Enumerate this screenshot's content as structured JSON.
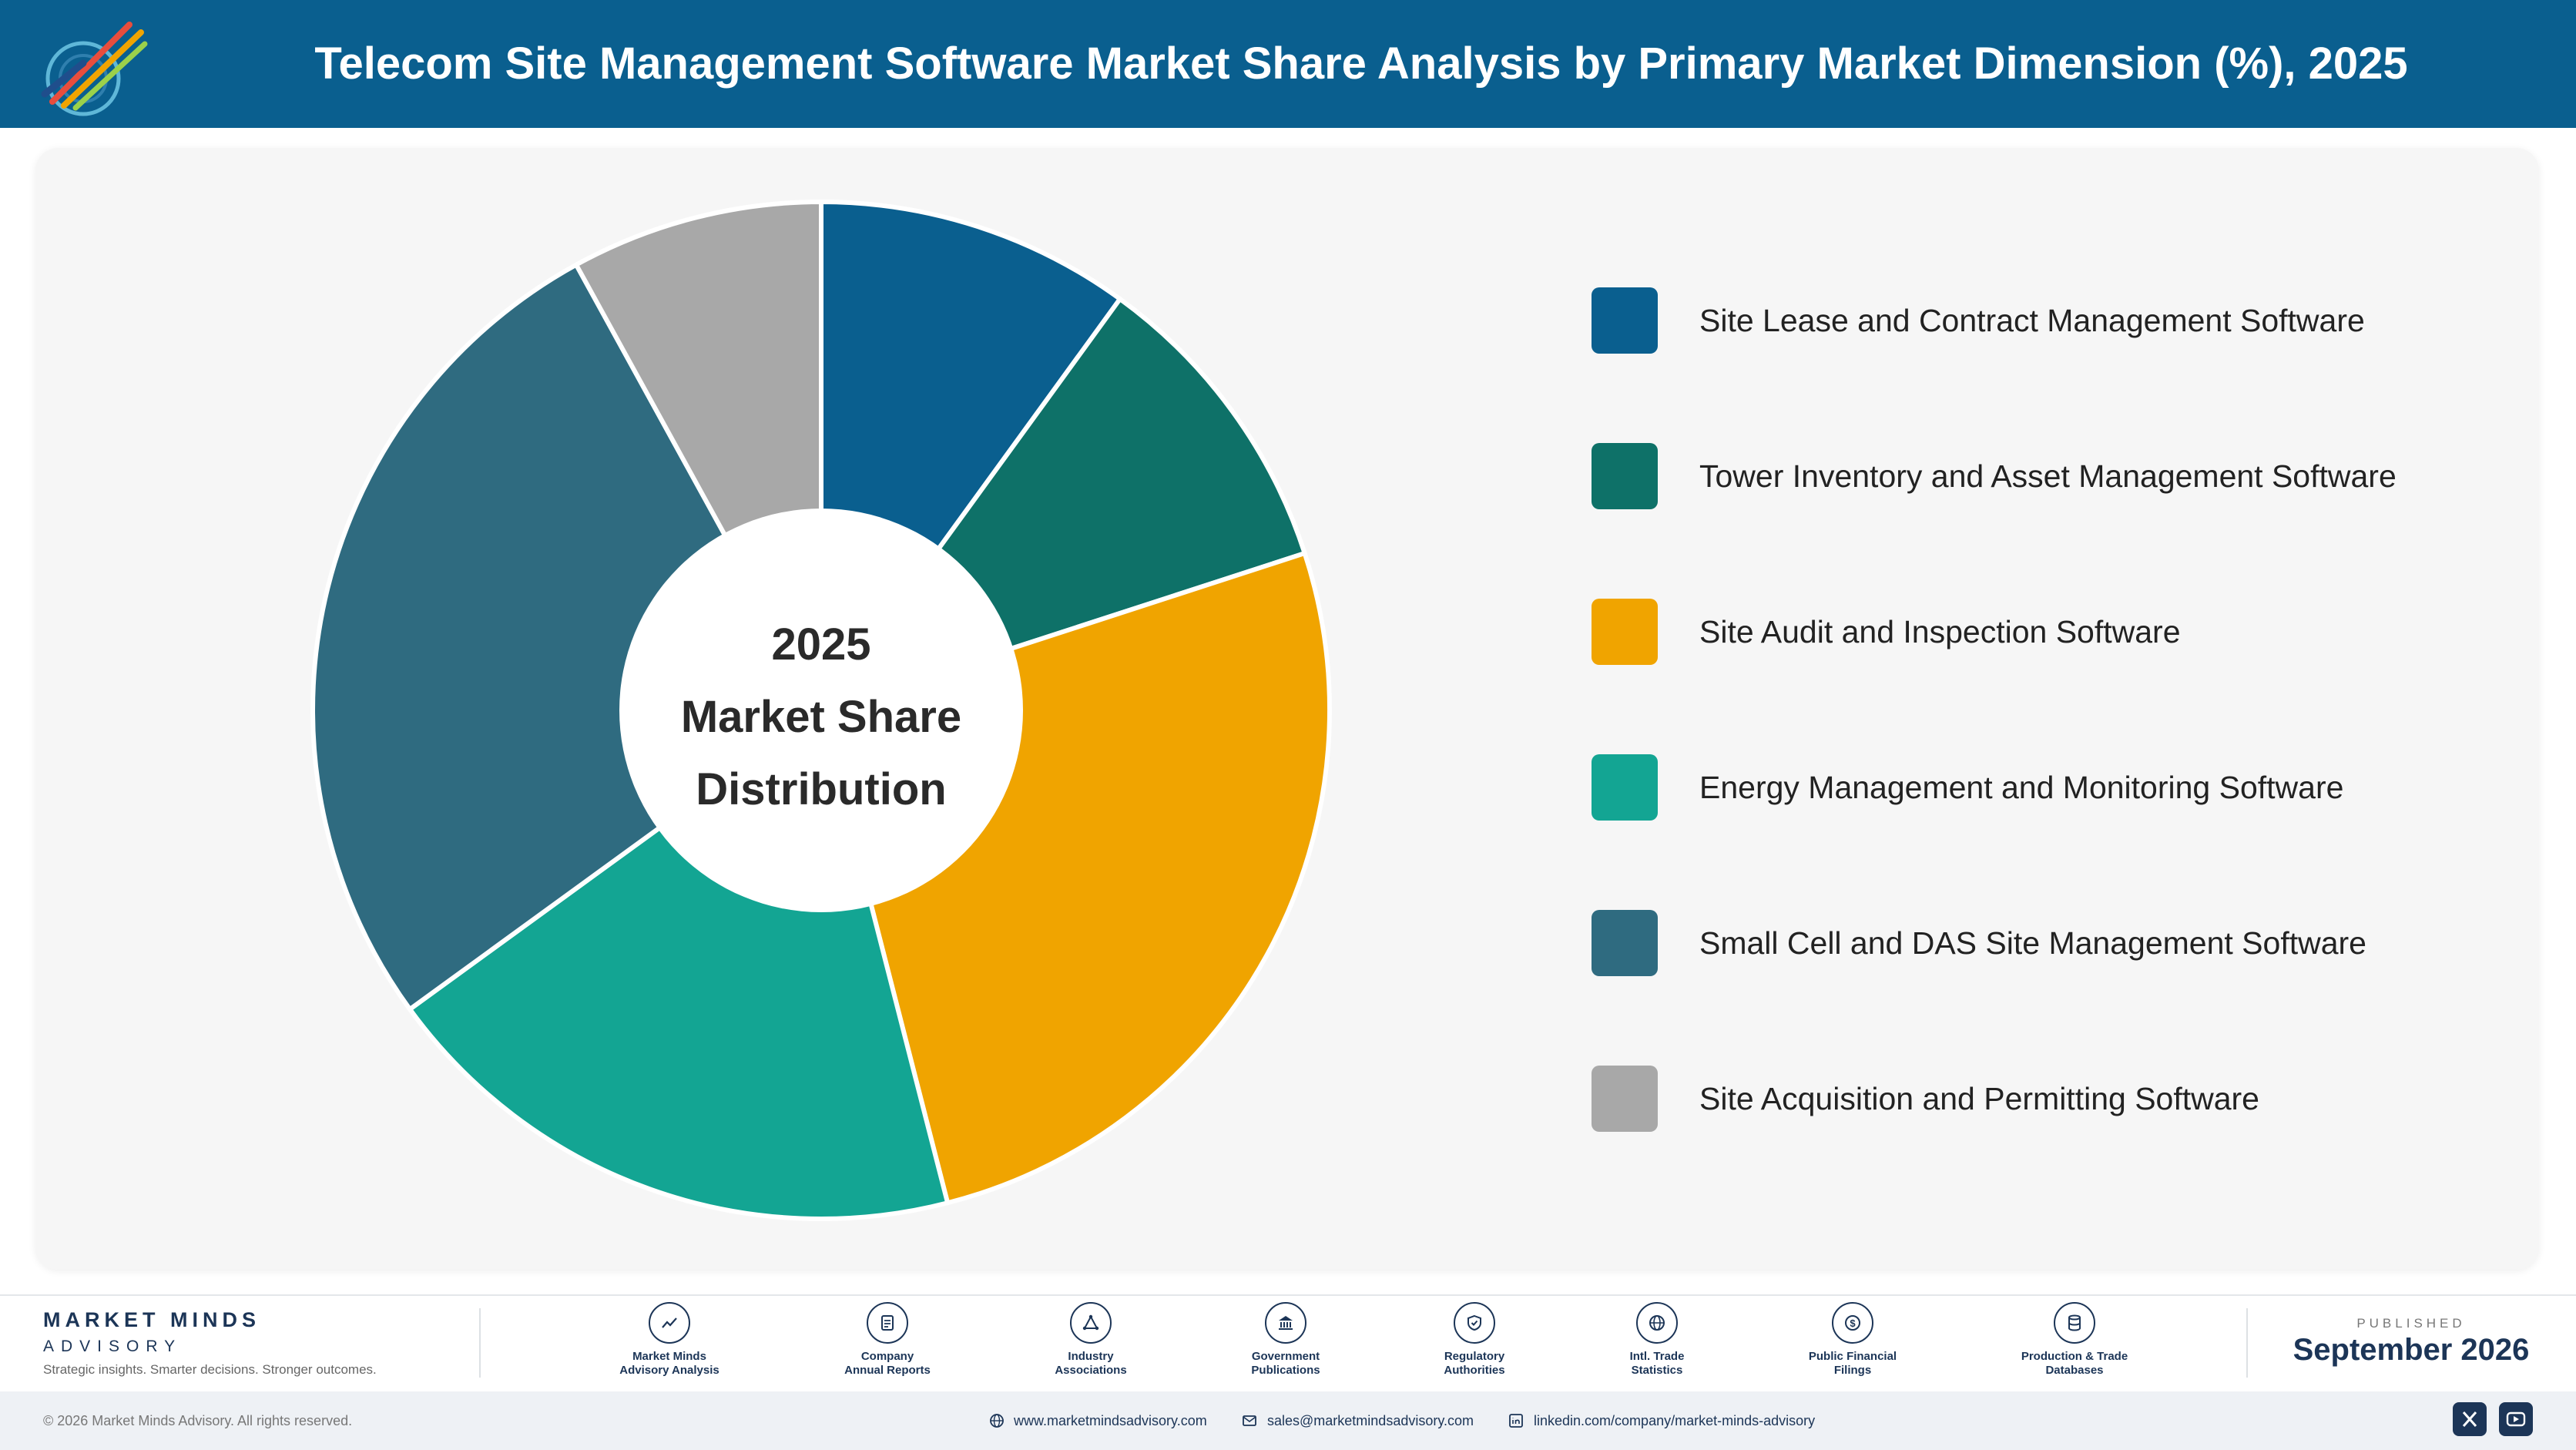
{
  "header": {
    "title": "Telecom Site Management Software Market Share Analysis by Primary Market Dimension (%), 2025"
  },
  "chart_data": {
    "type": "pie",
    "subtype": "donut",
    "center_text": [
      "2025",
      "Market Share",
      "Distribution"
    ],
    "categories": [
      "Site Lease and Contract Management Software",
      "Tower Inventory and Asset Management Software",
      "Site Audit and Inspection Software",
      "Energy Management and Monitoring Software",
      "Small Cell and DAS Site Management Software",
      "Site Acquisition and Permitting Software"
    ],
    "values": [
      10,
      10,
      26,
      19,
      27,
      8
    ],
    "colors": [
      "#0a5f8f",
      "#0e7168",
      "#f0a400",
      "#13a593",
      "#2f6b80",
      "#a8a8a8"
    ],
    "legend_position": "right"
  },
  "footer": {
    "brand_name": "MARKET MINDS",
    "brand_sub": "ADVISORY",
    "tagline": "Strategic insights. Smarter decisions. Stronger outcomes.",
    "sources": [
      {
        "line1": "Market Minds",
        "line2": "Advisory Analysis",
        "icon": "trend-icon"
      },
      {
        "line1": "Company",
        "line2": "Annual Reports",
        "icon": "document-icon"
      },
      {
        "line1": "Industry",
        "line2": "Associations",
        "icon": "network-icon"
      },
      {
        "line1": "Government",
        "line2": "Publications",
        "icon": "government-building-icon"
      },
      {
        "line1": "Regulatory",
        "line2": "Authorities",
        "icon": "shield-check-icon"
      },
      {
        "line1": "Intl. Trade",
        "line2": "Statistics",
        "icon": "globe-icon"
      },
      {
        "line1": "Public Financial",
        "line2": "Filings",
        "icon": "dollar-coin-icon"
      },
      {
        "line1": "Production & Trade",
        "line2": "Databases",
        "icon": "database-icon"
      }
    ],
    "published_label": "PUBLISHED",
    "published_date": "September 2026",
    "copyright": "© 2026 Market Minds Advisory. All rights reserved.",
    "website": "www.marketmindsadvisory.com",
    "email": "sales@marketmindsadvisory.com",
    "linkedin": "linkedin.com/company/market-minds-advisory"
  }
}
